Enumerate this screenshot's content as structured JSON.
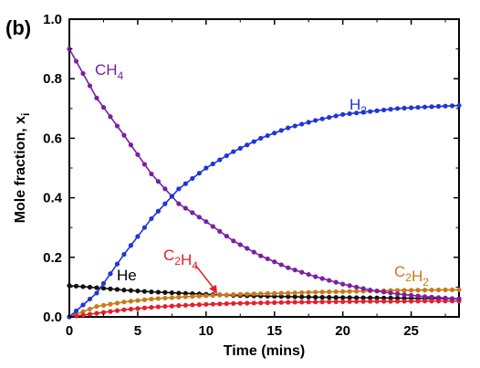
{
  "panel_label": "(b)",
  "chart_data": {
    "type": "line",
    "xlabel": "Time (mins)",
    "ylabel": "Mole fraction, x",
    "ylabel_subscript": "i",
    "xlim": [
      0,
      28.5
    ],
    "ylim": [
      0,
      1.0
    ],
    "xticks": [
      0,
      5,
      10,
      15,
      20,
      25
    ],
    "yticks": [
      0.0,
      0.2,
      0.4,
      0.6,
      0.8,
      1.0
    ],
    "xtick_labels": [
      "0",
      "5",
      "10",
      "15",
      "20",
      "25"
    ],
    "ytick_labels": [
      "0.0",
      "0.2",
      "0.4",
      "0.6",
      "0.8",
      "1.0"
    ],
    "grid": false,
    "x": [
      0,
      2,
      4,
      6,
      8,
      10,
      12,
      14,
      16,
      18,
      20,
      22,
      24,
      26,
      28.5
    ],
    "series": [
      {
        "name": "CH4",
        "label_main": "CH",
        "label_sub": "4",
        "color": "#7b1fa2",
        "values": [
          0.9,
          0.735,
          0.61,
          0.48,
          0.38,
          0.32,
          0.255,
          0.205,
          0.165,
          0.135,
          0.11,
          0.09,
          0.077,
          0.068,
          0.06
        ]
      },
      {
        "name": "H2",
        "label_main": "H",
        "label_sub": "2",
        "color": "#1f35d6",
        "values": [
          0.0,
          0.08,
          0.21,
          0.33,
          0.43,
          0.5,
          0.555,
          0.6,
          0.635,
          0.66,
          0.68,
          0.69,
          0.7,
          0.705,
          0.71
        ]
      },
      {
        "name": "He",
        "label_main": "He",
        "label_sub": "",
        "color": "#111111",
        "values": [
          0.105,
          0.098,
          0.09,
          0.084,
          0.08,
          0.076,
          0.072,
          0.07,
          0.068,
          0.066,
          0.065,
          0.064,
          0.063,
          0.062,
          0.061
        ]
      },
      {
        "name": "C2H4",
        "label_main": "C",
        "label_sub": "2",
        "label_main2": "H",
        "label_sub2": "4",
        "color": "#e5202a",
        "values": [
          0.0,
          0.012,
          0.024,
          0.032,
          0.038,
          0.042,
          0.045,
          0.047,
          0.049,
          0.05,
          0.051,
          0.052,
          0.052,
          0.053,
          0.053
        ]
      },
      {
        "name": "C2H2",
        "label_main": "C",
        "label_sub": "2",
        "label_main2": "H",
        "label_sub2": "2",
        "color": "#c97a1a",
        "values": [
          0.0,
          0.035,
          0.05,
          0.06,
          0.066,
          0.071,
          0.075,
          0.078,
          0.08,
          0.083,
          0.085,
          0.087,
          0.089,
          0.09,
          0.091
        ]
      }
    ]
  }
}
